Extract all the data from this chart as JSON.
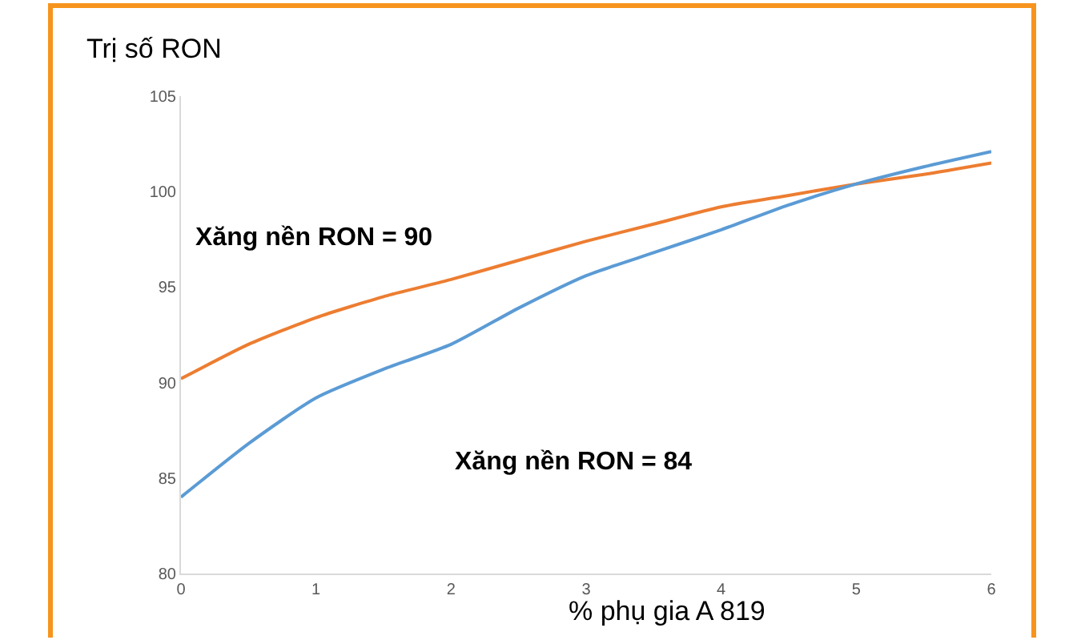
{
  "chart_data": {
    "type": "line",
    "ylabel": "Trị số RON",
    "xlabel": "% phụ gia A 819",
    "annotations": [
      "Xăng nền RON = 90",
      "Xăng nền RON = 84"
    ],
    "series": [
      {
        "color": "#ed7d31",
        "x": [
          0,
          0.5,
          1,
          1.5,
          2,
          2.5,
          3,
          3.5,
          4,
          4.5,
          5,
          5.5,
          6
        ],
        "values": [
          90.2,
          92.0,
          93.4,
          94.5,
          95.4,
          96.4,
          97.4,
          98.3,
          99.2,
          99.8,
          100.4,
          100.9,
          101.5
        ]
      },
      {
        "color": "#5b9bd5",
        "x": [
          0,
          0.5,
          1,
          1.5,
          2,
          2.5,
          3,
          3.5,
          4,
          4.5,
          5,
          5.5,
          6
        ],
        "values": [
          84,
          86.8,
          89.2,
          90.7,
          92.0,
          93.9,
          95.6,
          96.8,
          98.0,
          99.3,
          100.4,
          101.3,
          102.1
        ]
      }
    ],
    "xlim": [
      0,
      6
    ],
    "xticks": [
      0,
      1,
      2,
      3,
      4,
      5,
      6
    ],
    "ylim": [
      80,
      105
    ],
    "yticks": [
      80,
      85,
      90,
      95,
      100,
      105
    ],
    "grid": false,
    "marker": "none",
    "line_style": "solid"
  }
}
